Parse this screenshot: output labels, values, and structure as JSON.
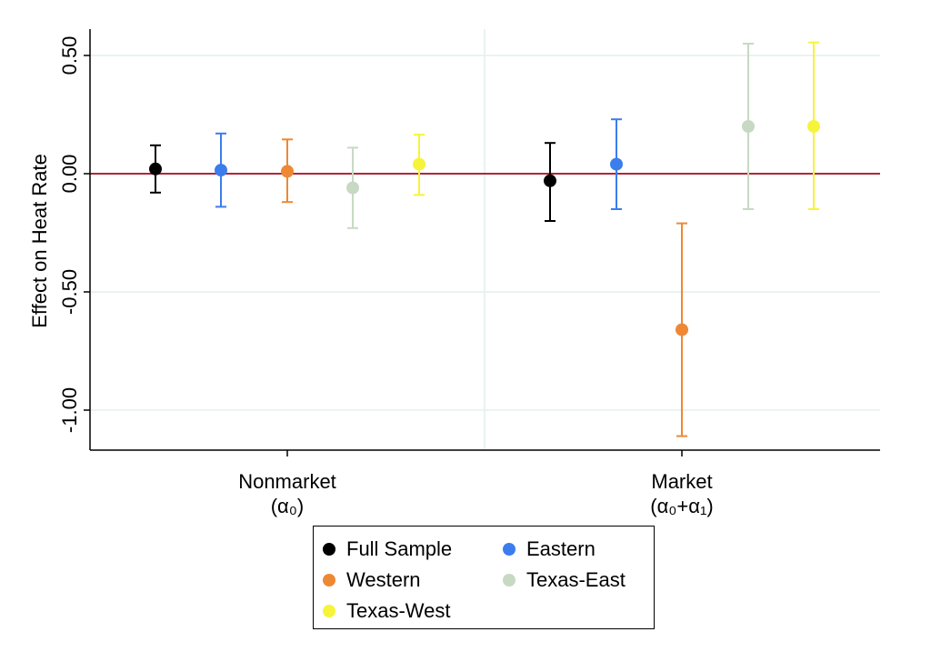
{
  "chart_data": {
    "type": "scatter",
    "ylabel": "Effect on Heat Rate",
    "xlabel": "",
    "ylim": [
      -1.17,
      0.62
    ],
    "yticks": [
      0.5,
      0.0,
      -0.5,
      -1.0
    ],
    "ytick_labels": [
      "0.50",
      "0.00",
      "-0.50",
      "-1.00"
    ],
    "grid": true,
    "reference_line": {
      "y": 0.0,
      "color": "#b0253a"
    },
    "groups": [
      {
        "name": "Nonmarket",
        "sublabel": "(α₀)"
      },
      {
        "name": "Market",
        "sublabel": "(α₀+α₁)"
      }
    ],
    "series": [
      {
        "name": "Full Sample",
        "color": "#000000",
        "points": [
          {
            "group": "Nonmarket",
            "estimate": 0.02,
            "lower": -0.08,
            "upper": 0.12
          },
          {
            "group": "Market",
            "estimate": -0.03,
            "lower": -0.2,
            "upper": 0.13
          }
        ]
      },
      {
        "name": "Eastern",
        "color": "#3b7ded",
        "points": [
          {
            "group": "Nonmarket",
            "estimate": 0.015,
            "lower": -0.14,
            "upper": 0.17
          },
          {
            "group": "Market",
            "estimate": 0.04,
            "lower": -0.15,
            "upper": 0.23
          }
        ]
      },
      {
        "name": "Western",
        "color": "#ee8834",
        "points": [
          {
            "group": "Nonmarket",
            "estimate": 0.01,
            "lower": -0.12,
            "upper": 0.145
          },
          {
            "group": "Market",
            "estimate": -0.66,
            "lower": -1.11,
            "upper": -0.21
          }
        ]
      },
      {
        "name": "Texas-East",
        "color": "#c7d9c3",
        "points": [
          {
            "group": "Nonmarket",
            "estimate": -0.06,
            "lower": -0.23,
            "upper": 0.11
          },
          {
            "group": "Market",
            "estimate": 0.2,
            "lower": -0.15,
            "upper": 0.55
          }
        ]
      },
      {
        "name": "Texas-West",
        "color": "#f6f43a",
        "points": [
          {
            "group": "Nonmarket",
            "estimate": 0.04,
            "lower": -0.09,
            "upper": 0.165
          },
          {
            "group": "Market",
            "estimate": 0.2,
            "lower": -0.15,
            "upper": 0.555
          }
        ]
      }
    ],
    "legend_position": "bottom"
  }
}
